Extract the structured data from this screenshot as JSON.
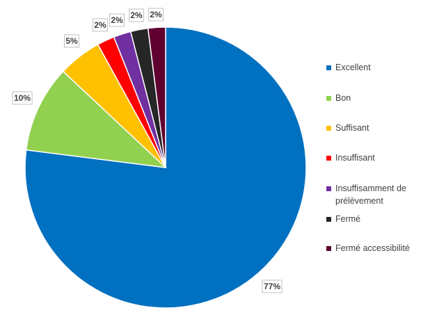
{
  "chart_data": {
    "type": "pie",
    "title": "",
    "categories": [
      "Excellent",
      "Bon",
      "Suffisant",
      "Insuffisant",
      "Insuffisamment de prélèvement",
      "Fermé",
      "Fermé accessibilité"
    ],
    "values": [
      77,
      10,
      5,
      2,
      2,
      2,
      2
    ],
    "data_labels": [
      "77%",
      "10%",
      "5%",
      "2%",
      "2%",
      "2%",
      "2%"
    ],
    "colors": [
      "#0070c0",
      "#92d050",
      "#ffc000",
      "#ff0000",
      "#7030a0",
      "#262626",
      "#600030"
    ],
    "start_angle_deg": 0,
    "direction": "clockwise",
    "legend_position": "right"
  }
}
